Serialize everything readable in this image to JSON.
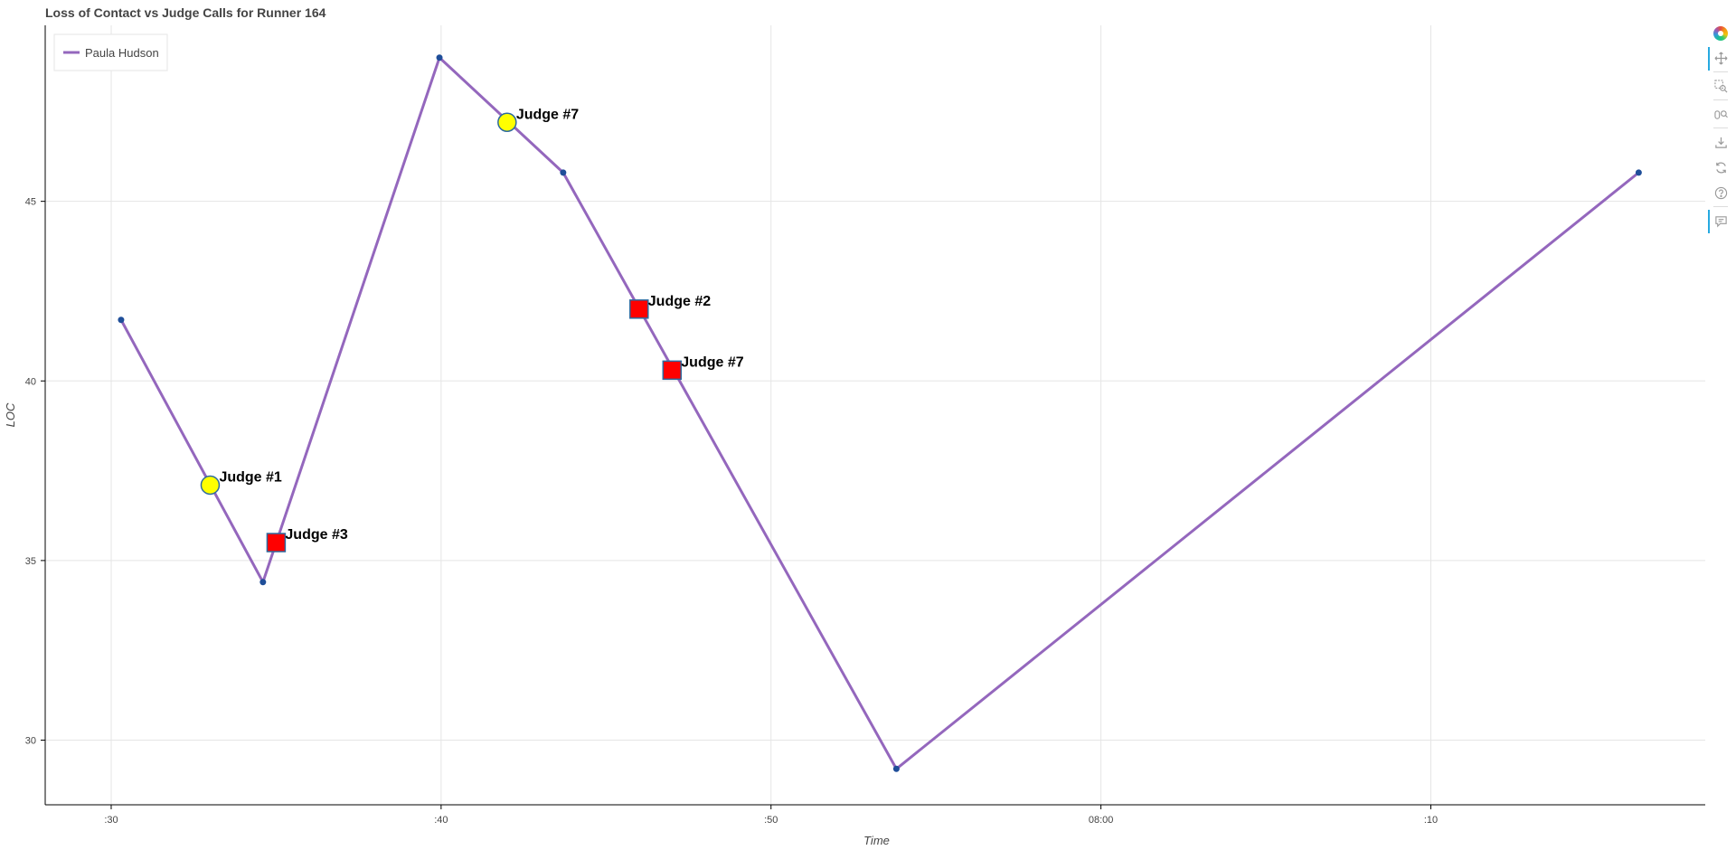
{
  "chart_data": {
    "type": "line",
    "title": "Loss of Contact vs Judge Calls for Runner 164",
    "xlabel": "Time",
    "ylabel": "LOC",
    "x_tick_labels": [
      ":30",
      ":40",
      ":50",
      "08:00",
      ":10"
    ],
    "x_tick_values_sec": [
      450,
      460,
      470,
      480,
      490
    ],
    "xlim_sec": [
      448,
      498.4
    ],
    "y_ticks": [
      30,
      35,
      40,
      45
    ],
    "ylim": [
      28.2,
      49.9
    ],
    "grid": true,
    "legend_placement": "top-left",
    "series": [
      {
        "name": "Paula Hudson",
        "color": "#9467bd",
        "x_sec": [
          450.3,
          454.6,
          459.95,
          463.7,
          473.8,
          496.3
        ],
        "y": [
          41.7,
          34.4,
          49.0,
          45.8,
          29.2,
          45.8
        ]
      }
    ],
    "annotations": [
      {
        "label": "Judge #1",
        "shape": "circle",
        "color": "#ffff00",
        "x_sec": 453.0,
        "y": 37.1
      },
      {
        "label": "Judge #3",
        "shape": "square",
        "color": "#ff0000",
        "x_sec": 455.0,
        "y": 35.5
      },
      {
        "label": "Judge #7",
        "shape": "circle",
        "color": "#ffff00",
        "x_sec": 462.0,
        "y": 47.2
      },
      {
        "label": "Judge #2",
        "shape": "square",
        "color": "#ff0000",
        "x_sec": 466.0,
        "y": 42.0
      },
      {
        "label": "Judge #7",
        "shape": "square",
        "color": "#ff0000",
        "x_sec": 467.0,
        "y": 40.3
      }
    ]
  },
  "toolbar": {
    "tools": [
      {
        "name": "pan-tool-icon",
        "active": true
      },
      {
        "name": "box-zoom-tool-icon",
        "active": false
      },
      {
        "name": "wheel-zoom-tool-icon",
        "active": false
      },
      {
        "name": "save-tool-icon",
        "active": false
      },
      {
        "name": "reset-tool-icon",
        "active": false
      },
      {
        "name": "help-tool-icon",
        "active": false
      },
      {
        "name": "hover-tool-icon",
        "active": true
      }
    ]
  }
}
